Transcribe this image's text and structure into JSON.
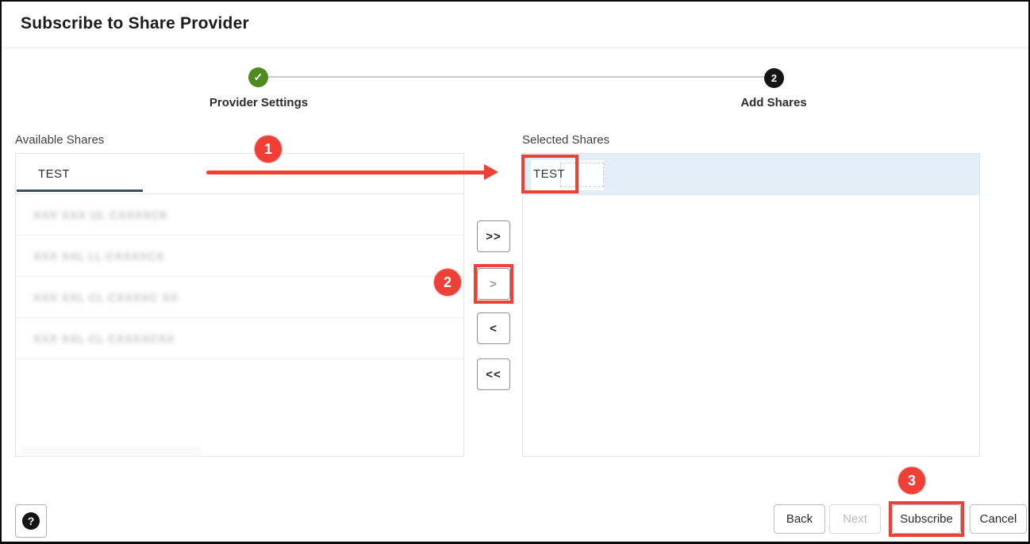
{
  "window": {
    "title": "Subscribe to Share Provider"
  },
  "stepper": {
    "step1": {
      "label": "Provider Settings",
      "state": "completed",
      "icon": "check",
      "glyph": "✓"
    },
    "step2": {
      "label": "Add Shares",
      "state": "current",
      "number": "2"
    }
  },
  "available": {
    "label": "Available Shares",
    "selected_item": "TEST",
    "redacted_items": [
      {
        "redacted": true,
        "placeholder": "XXX XXX UL CXXXXCK"
      },
      {
        "redacted": true,
        "placeholder": "XXX XXL LL CXXXXCX"
      },
      {
        "redacted": true,
        "placeholder": "XXX XXL CL CXXXXC XX"
      },
      {
        "redacted": true,
        "placeholder": "XXX XXL CL CXXXXCXX"
      }
    ]
  },
  "selected": {
    "label": "Selected Shares",
    "items": [
      {
        "text": "TEST",
        "selected": true
      }
    ]
  },
  "shuttle_buttons": {
    "move_all_right": ">>",
    "move_right": ">",
    "move_left": "<",
    "move_all_left": "<<"
  },
  "footer": {
    "help": "?",
    "back": "Back",
    "next": "Next",
    "next_disabled": true,
    "subscribe": "Subscribe",
    "cancel": "Cancel"
  },
  "annotations": {
    "badge1": "1",
    "badge2": "2",
    "badge3": "3",
    "accent_color": "#ee4036"
  },
  "colors": {
    "step_complete_green": "#4e8b1f",
    "step_current_black": "#141414",
    "selected_row_blue": "#e2eff7",
    "tab_underline_slate": "#3e505a",
    "annotation_red": "#ee4036"
  }
}
